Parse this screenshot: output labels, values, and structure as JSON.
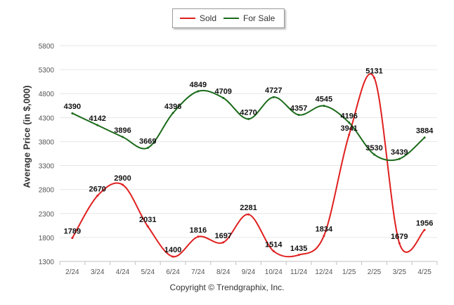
{
  "chart_data": {
    "type": "line",
    "title": "",
    "xlabel": "",
    "ylabel": "Average Price (in $,000)",
    "categories": [
      "2/24",
      "3/24",
      "4/24",
      "5/24",
      "6/24",
      "7/24",
      "8/24",
      "9/24",
      "10/24",
      "11/24",
      "12/24",
      "1/25",
      "2/25",
      "3/25",
      "4/25"
    ],
    "y_ticks": [
      1300,
      1800,
      2300,
      2800,
      3300,
      3800,
      4300,
      4800,
      5300,
      5800
    ],
    "ylim": [
      1300,
      5800
    ],
    "grid": true,
    "legend_position": "top-center",
    "series": [
      {
        "name": "Sold",
        "color": "#e01f1f",
        "values": [
          1789,
          2670,
          2900,
          2031,
          1400,
          1816,
          1697,
          2281,
          1514,
          1435,
          1834,
          3941,
          5131,
          1679,
          1956
        ]
      },
      {
        "name": "For Sale",
        "color": "#1a6b1a",
        "values": [
          4390,
          4142,
          3896,
          3669,
          4396,
          4849,
          4709,
          4270,
          4727,
          4357,
          4545,
          4196,
          3530,
          3439,
          3884
        ]
      }
    ]
  },
  "footer": {
    "copyright": "Copyright © Trendgraphix, Inc."
  }
}
